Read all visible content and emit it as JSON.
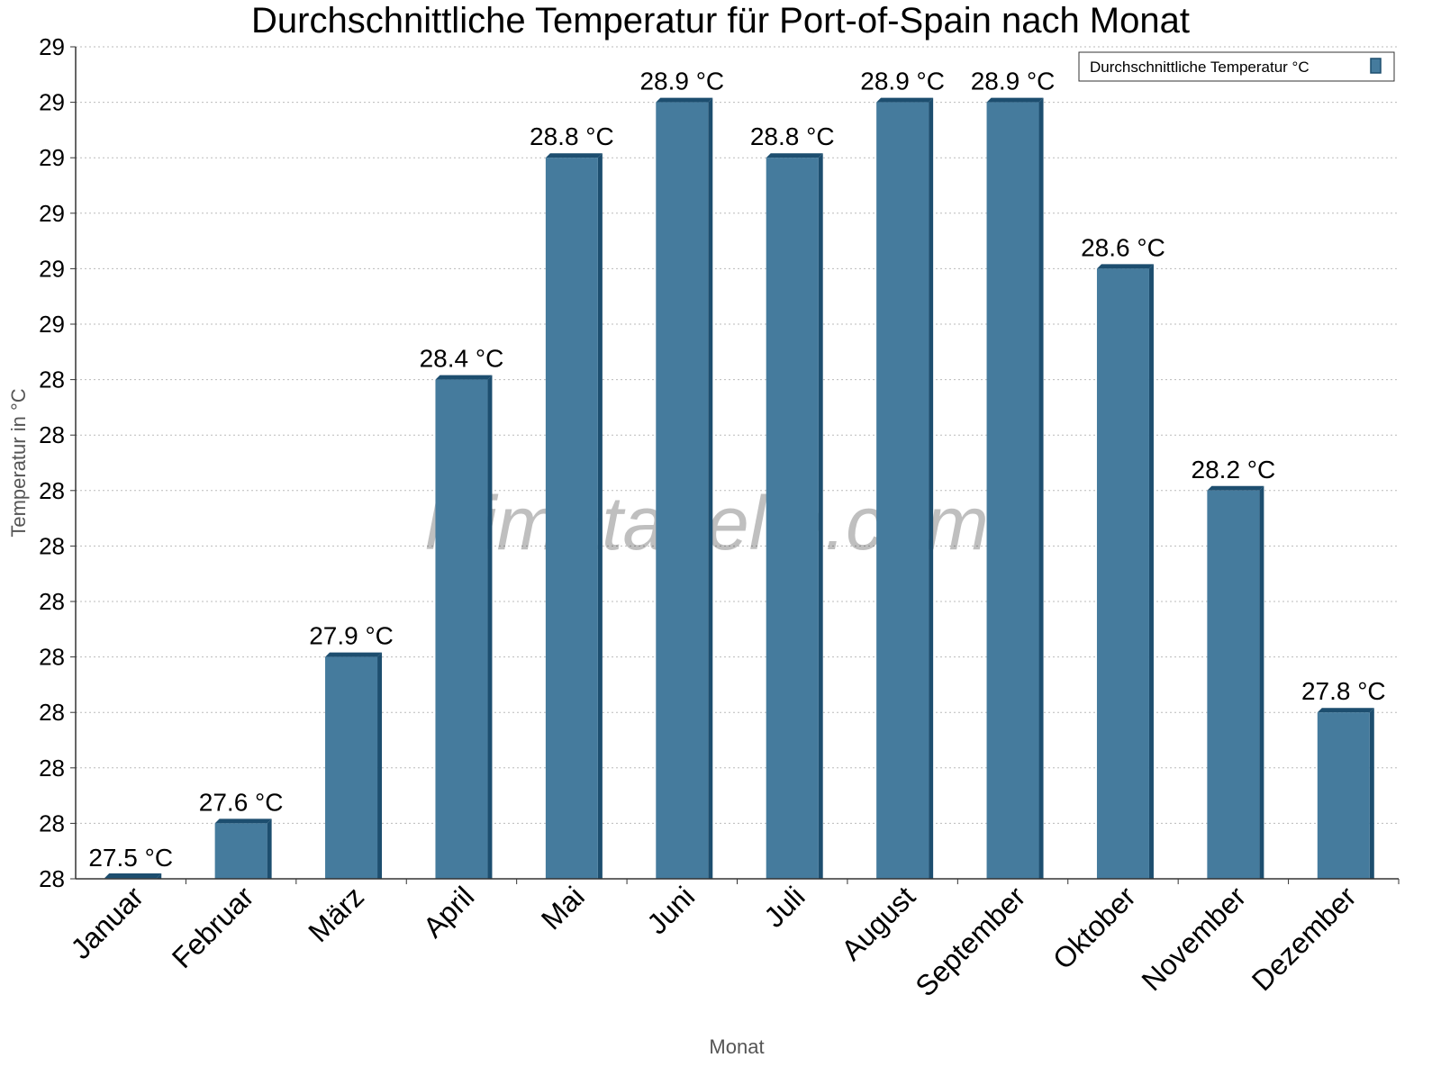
{
  "chart_data": {
    "type": "bar",
    "title": "Durchschnittliche Temperatur für Port-of-Spain nach Monat",
    "xlabel": "Monat",
    "ylabel": "Temperatur in °C",
    "categories": [
      "Januar",
      "Februar",
      "März",
      "April",
      "Mai",
      "Juni",
      "Juli",
      "August",
      "September",
      "Oktober",
      "November",
      "Dezember"
    ],
    "series": [
      {
        "name": "Durchschnittliche Temperatur °C",
        "values": [
          27.5,
          27.6,
          27.9,
          28.4,
          28.8,
          28.9,
          28.8,
          28.9,
          28.9,
          28.6,
          28.2,
          27.8
        ],
        "data_labels": [
          "27.5 °C",
          "27.6 °C",
          "27.9 °C",
          "28.4 °C",
          "28.8 °C",
          "28.9 °C",
          "28.8 °C",
          "28.9 °C",
          "28.9 °C",
          "28.6 °C",
          "28.2 °C",
          "27.8 °C"
        ],
        "color": "#457b9d",
        "side_color": "#1d4e6f"
      }
    ],
    "ylim": [
      27.5,
      29.0
    ],
    "yticks": [
      27.5,
      27.6,
      27.7,
      27.8,
      27.9,
      28.0,
      28.1,
      28.2,
      28.3,
      28.4,
      28.5,
      28.6,
      28.7,
      28.8,
      28.9,
      29.0
    ],
    "ytick_labels": [
      "28",
      "28",
      "28",
      "28",
      "28",
      "28",
      "28",
      "28",
      "28",
      "28",
      "29",
      "29",
      "29",
      "29",
      "29",
      "29"
    ],
    "grid": true,
    "legend_position": "top-right",
    "watermark": "klimatabelle.com"
  }
}
